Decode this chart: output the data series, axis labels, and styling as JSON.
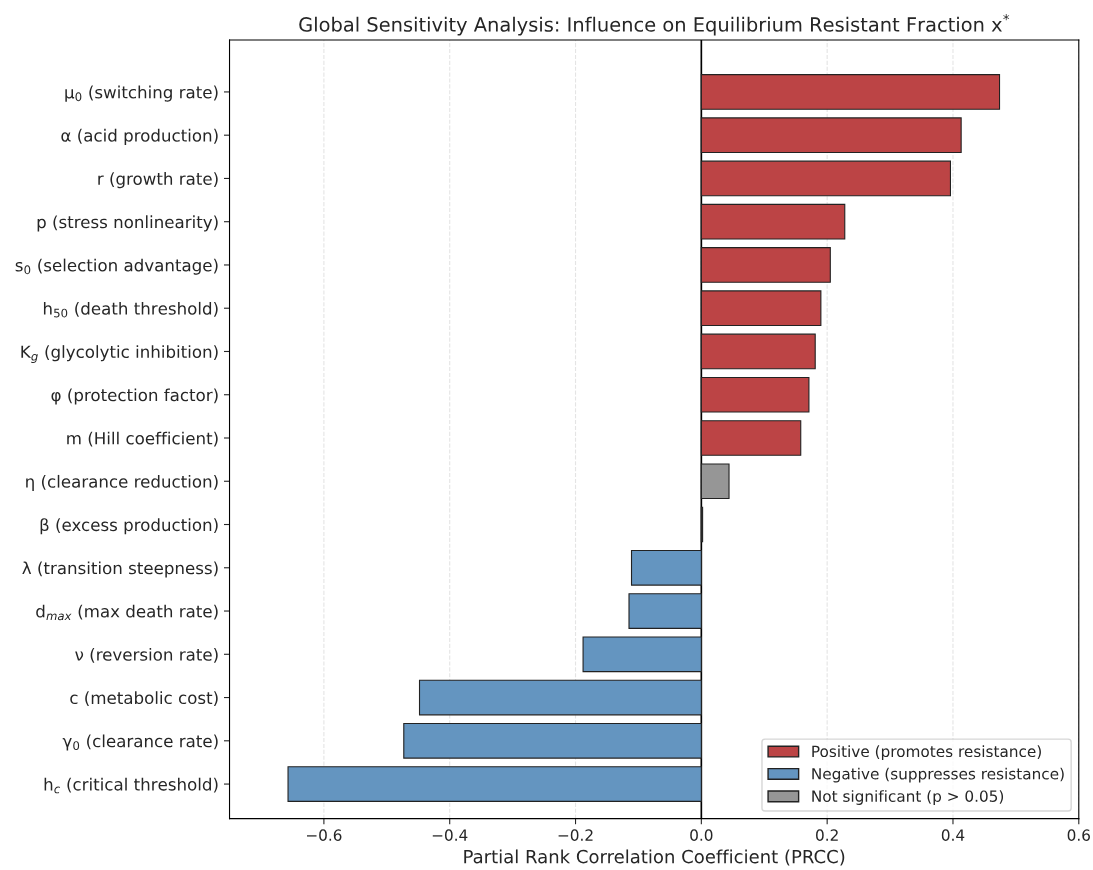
{
  "chart_data": {
    "type": "bar",
    "orientation": "horizontal",
    "title": "Global Sensitivity Analysis: Influence on Equilibrium Resistant Fraction x$^{*}$",
    "xlabel": "Partial Rank Correlation Coefficient (PRCC)",
    "categories": [
      "μ$_{0}$ (switching rate)",
      "α (acid production)",
      "r (growth rate)",
      "p (stress nonlinearity)",
      "s$_{0}$ (selection advantage)",
      "h$_{50}$ (death threshold)",
      "K$_{g}$ (glycolytic inhibition)",
      "φ (protection factor)",
      "m (Hill coefficient)",
      "η (clearance reduction)",
      "β (excess production)",
      "λ (transition steepness)",
      "d$_{max}$ (max death rate)",
      "ν (reversion rate)",
      "c (metabolic cost)",
      "γ$_{0}$ (clearance rate)",
      "h$_{c}$ (critical threshold)"
    ],
    "series": [
      {
        "name": "Positive (promotes resistance)",
        "color": "#bc4445",
        "values": [
          0.474,
          0.413,
          0.396,
          0.228,
          0.205,
          0.19,
          0.181,
          0.171,
          0.158,
          null,
          null,
          null,
          null,
          null,
          null,
          null,
          null
        ]
      },
      {
        "name": "Negative (suppresses resistance)",
        "color": "#6495c0",
        "values": [
          null,
          null,
          null,
          null,
          null,
          null,
          null,
          null,
          null,
          null,
          null,
          -0.111,
          -0.115,
          -0.188,
          -0.448,
          -0.473,
          -0.657
        ]
      },
      {
        "name": "Not significant (p > 0.05)",
        "color": "#969696",
        "values": [
          null,
          null,
          null,
          null,
          null,
          null,
          null,
          null,
          null,
          0.044,
          0.002,
          null,
          null,
          null,
          null,
          null,
          null
        ]
      }
    ],
    "xlim": [
      -0.75,
      0.6
    ],
    "xticks": [
      {
        "value": -0.6,
        "label": "−0.6"
      },
      {
        "value": -0.4,
        "label": "−0.4"
      },
      {
        "value": -0.2,
        "label": "−0.2"
      },
      {
        "value": 0,
        "label": "0.0"
      },
      {
        "value": 0.2,
        "label": "0.2"
      },
      {
        "value": 0.4,
        "label": "0.4"
      },
      {
        "value": 0.6,
        "label": "0.6"
      }
    ],
    "ref_lines": [
      {
        "axis": "x",
        "value": 0,
        "color": "#000000"
      }
    ],
    "grid": "x",
    "legend": "bottom right"
  }
}
